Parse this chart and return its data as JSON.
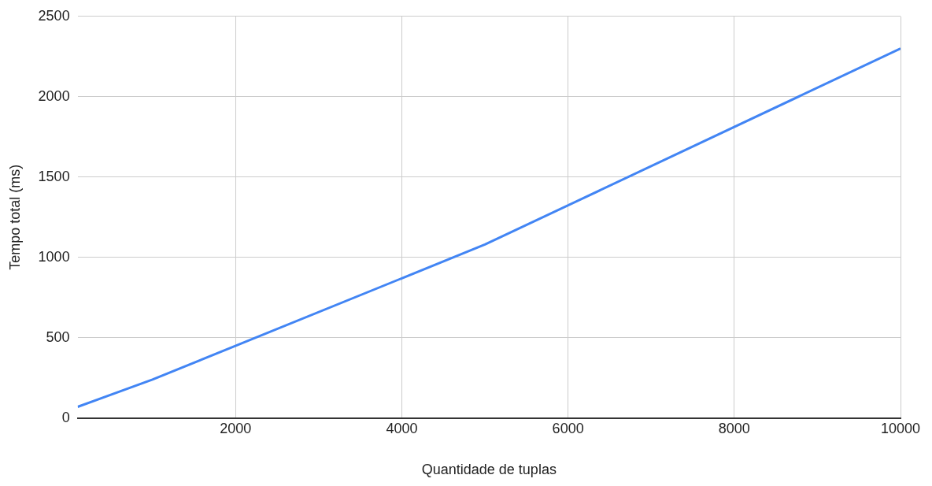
{
  "chart_data": {
    "type": "line",
    "xlabel": "Quantidade de tuplas",
    "ylabel": "Tempo total (ms)",
    "x": [
      100,
      1000,
      5000,
      10000
    ],
    "series": [
      {
        "color": "#4285f4",
        "values": [
          70,
          240,
          1080,
          2300
        ]
      }
    ],
    "xlim": [
      100,
      10000
    ],
    "xticks": [
      2000,
      4000,
      6000,
      8000,
      10000
    ],
    "ylim": [
      0,
      2500
    ],
    "yticks": [
      0,
      500,
      1000,
      1500,
      2000,
      2500
    ],
    "grid": true,
    "legend": false,
    "marker": "none",
    "line_style": "solid"
  }
}
